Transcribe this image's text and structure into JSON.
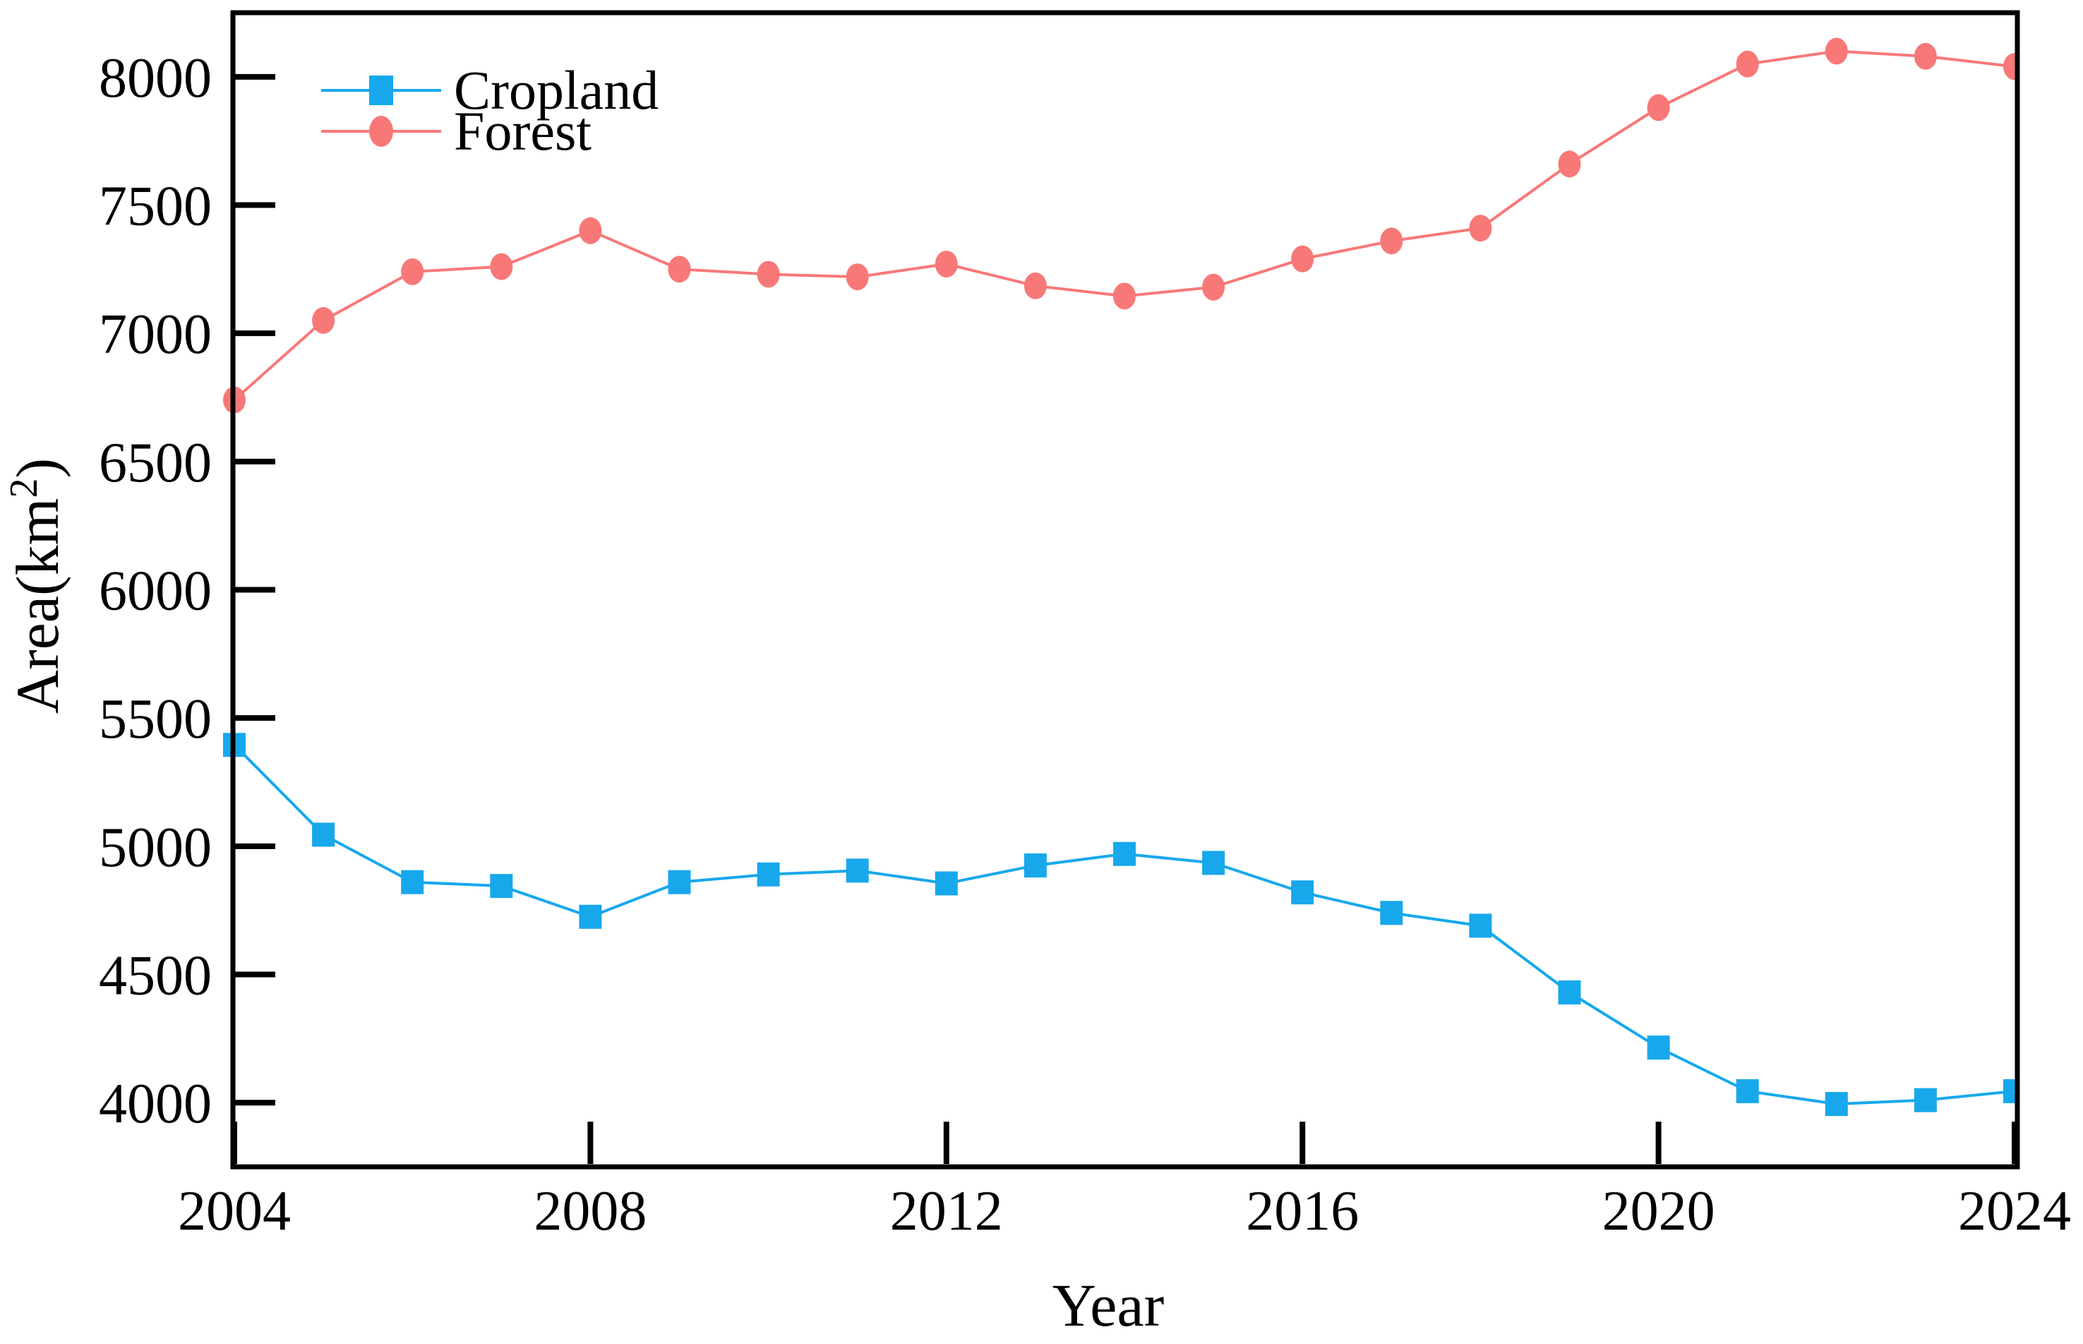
{
  "figure": {
    "background": "#FFFFFF",
    "frame_color": "#000000",
    "text_color": "#000000"
  },
  "chart_data": {
    "type": "line",
    "title": "",
    "xlabel": "Year",
    "ylabel": "Area(km²)",
    "ylabel_parts": {
      "prefix": "Area(km",
      "sup": "2",
      "suffix": ")"
    },
    "x": [
      2004,
      2005,
      2006,
      2007,
      2008,
      2009,
      2010,
      2011,
      2012,
      2013,
      2014,
      2015,
      2016,
      2017,
      2018,
      2019,
      2020,
      2021,
      2022,
      2023,
      2024
    ],
    "series": [
      {
        "name": "Cropland",
        "color": "#17A8EC",
        "marker": "square",
        "values": [
          5395,
          5045,
          4860,
          4845,
          4725,
          4860,
          4890,
          4905,
          4855,
          4925,
          4970,
          4935,
          4820,
          4740,
          4690,
          4430,
          4215,
          4045,
          3995,
          4010,
          4045
        ]
      },
      {
        "name": "Forest",
        "color": "#F87878",
        "marker": "circle",
        "values": [
          6740,
          7050,
          7240,
          7260,
          7400,
          7250,
          7230,
          7220,
          7270,
          7185,
          7145,
          7180,
          7290,
          7360,
          7410,
          7660,
          7880,
          8050,
          8100,
          8080,
          8040
        ]
      }
    ],
    "xticks": [
      2004,
      2008,
      2012,
      2016,
      2020,
      2024
    ],
    "yticks": [
      4000,
      4500,
      5000,
      5500,
      6000,
      6500,
      7000,
      7500,
      8000
    ],
    "xlim": [
      2004,
      2024
    ],
    "ylim": [
      3750,
      8250
    ],
    "grid": false,
    "legend_position": "top-left"
  }
}
